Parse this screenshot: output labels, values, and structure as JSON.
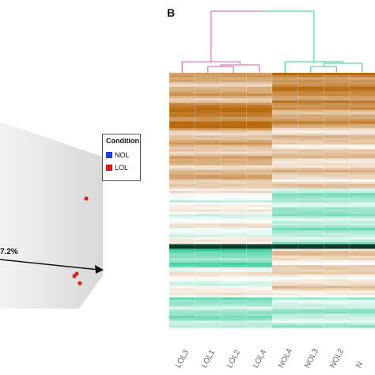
{
  "panel_label": "B",
  "pca": {
    "axis_percent": "7.2%",
    "legend": {
      "title": "Condition",
      "items": [
        {
          "label": "NOL",
          "color": "#1f3fd0"
        },
        {
          "label": "LOL",
          "color": "#d01f1f"
        }
      ]
    },
    "point_color": "#d42424"
  },
  "heatmap": {
    "samples": [
      "LOL3",
      "LOL1",
      "LOL2",
      "LOL4",
      "NOL4",
      "NOL3",
      "NOL2",
      "N"
    ],
    "colors": {
      "high": "#b8690f",
      "mid": "#ffffff",
      "low": "#19c38a",
      "dark": "#0d3b2a"
    },
    "dendrogram_colors": {
      "LOL": "#e07ab3",
      "NOL": "#5fd6a3"
    }
  },
  "chart_data": {
    "type": "heatmap",
    "title": "",
    "columns": [
      "LOL3",
      "LOL1",
      "LOL2",
      "LOL4",
      "NOL4",
      "NOL3",
      "NOL2",
      "N"
    ],
    "groups": [
      {
        "name": "LOL",
        "columns": [
          "LOL3",
          "LOL1",
          "LOL2",
          "LOL4"
        ]
      },
      {
        "name": "NOL",
        "columns": [
          "NOL4",
          "NOL3",
          "NOL2",
          "N"
        ]
      }
    ],
    "color_scale": [
      "low (green)",
      "mid (white)",
      "high (brown)"
    ],
    "bands": [
      {
        "row_frac": [
          0.0,
          0.12
        ],
        "LOL": 0.5,
        "NOL": 0.8
      },
      {
        "row_frac": [
          0.12,
          0.22
        ],
        "LOL": 0.9,
        "NOL": 0.6
      },
      {
        "row_frac": [
          0.22,
          0.45
        ],
        "LOL": 0.45,
        "NOL": 0.3
      },
      {
        "row_frac": [
          0.45,
          0.67
        ],
        "LOL": 0.0,
        "NOL": -0.35
      },
      {
        "row_frac": [
          0.67,
          0.69
        ],
        "LOL": -1.0,
        "NOL": -1.0
      },
      {
        "row_frac": [
          0.69,
          0.76
        ],
        "LOL": -0.6,
        "NOL": 0.25
      },
      {
        "row_frac": [
          0.76,
          0.88
        ],
        "LOL": 0.0,
        "NOL": 0.2
      },
      {
        "row_frac": [
          0.88,
          1.0
        ],
        "LOL": -0.4,
        "NOL": -0.3
      }
    ]
  }
}
